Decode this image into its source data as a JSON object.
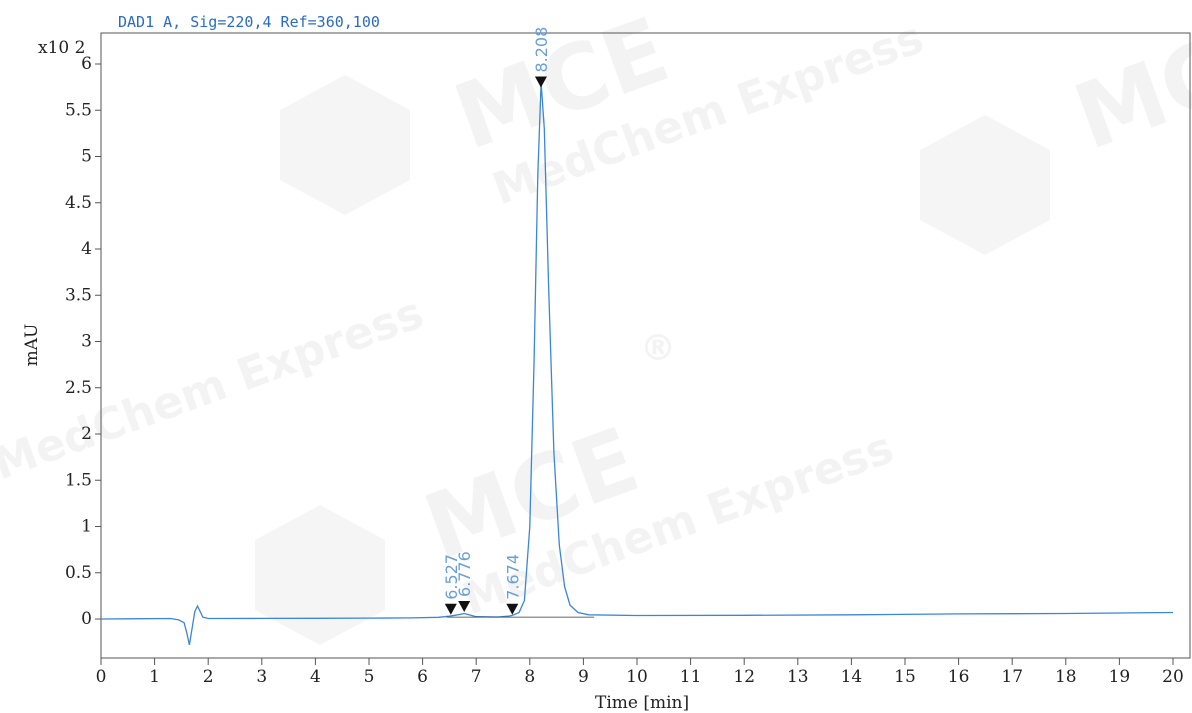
{
  "watermark": {
    "brand": "MCE",
    "name": "MedChem Express",
    "reg": "®"
  },
  "chart_data": {
    "type": "line",
    "title": "DAD1 A, Sig=220,4 Ref=360,100",
    "xlabel": "Time [min]",
    "ylabel": "mAU",
    "y_multiplier": "x10 2",
    "xlim": [
      0,
      20
    ],
    "ylim": [
      -0.45,
      6.3
    ],
    "x_ticks": [
      "0",
      "1",
      "2",
      "3",
      "4",
      "5",
      "6",
      "7",
      "8",
      "9",
      "10",
      "11",
      "12",
      "13",
      "14",
      "15",
      "16",
      "17",
      "18",
      "19",
      "20"
    ],
    "y_ticks": [
      {
        "v": 0,
        "label": "0"
      },
      {
        "v": 0.5,
        "label": "0.5"
      },
      {
        "v": 1,
        "label": "1"
      },
      {
        "v": 1.5,
        "label": "1.5"
      },
      {
        "v": 2,
        "label": "2"
      },
      {
        "v": 2.5,
        "label": "2.5"
      },
      {
        "v": 3,
        "label": "3"
      },
      {
        "v": 3.5,
        "label": "3.5"
      },
      {
        "v": 4,
        "label": "4"
      },
      {
        "v": 4.5,
        "label": "4.5"
      },
      {
        "v": 5,
        "label": "5"
      },
      {
        "v": 5.5,
        "label": "5.5"
      },
      {
        "v": 6,
        "label": "6"
      }
    ],
    "series": [
      {
        "color": "#3b86d8",
        "points": [
          [
            0,
            0
          ],
          [
            1.3,
            0.005
          ],
          [
            1.45,
            -0.01
          ],
          [
            1.55,
            -0.04
          ],
          [
            1.6,
            -0.15
          ],
          [
            1.65,
            -0.28
          ],
          [
            1.7,
            -0.1
          ],
          [
            1.75,
            0.08
          ],
          [
            1.8,
            0.14
          ],
          [
            1.85,
            0.08
          ],
          [
            1.9,
            0.02
          ],
          [
            2.0,
            0.005
          ],
          [
            3,
            0.006
          ],
          [
            4,
            0.008
          ],
          [
            5,
            0.01
          ],
          [
            5.8,
            0.012
          ],
          [
            6.3,
            0.018
          ],
          [
            6.5,
            0.03
          ],
          [
            6.6,
            0.04
          ],
          [
            6.7,
            0.05
          ],
          [
            6.78,
            0.06
          ],
          [
            6.9,
            0.04
          ],
          [
            7.0,
            0.025
          ],
          [
            7.4,
            0.022
          ],
          [
            7.6,
            0.03
          ],
          [
            7.68,
            0.04
          ],
          [
            7.8,
            0.07
          ],
          [
            7.9,
            0.2
          ],
          [
            8.0,
            1.0
          ],
          [
            8.08,
            2.8
          ],
          [
            8.15,
            4.8
          ],
          [
            8.21,
            5.8
          ],
          [
            8.27,
            5.3
          ],
          [
            8.35,
            3.6
          ],
          [
            8.45,
            1.8
          ],
          [
            8.55,
            0.8
          ],
          [
            8.65,
            0.35
          ],
          [
            8.75,
            0.15
          ],
          [
            8.9,
            0.07
          ],
          [
            9.1,
            0.045
          ],
          [
            10,
            0.038
          ],
          [
            12,
            0.04
          ],
          [
            14,
            0.045
          ],
          [
            16,
            0.055
          ],
          [
            18,
            0.06
          ],
          [
            19,
            0.065
          ],
          [
            20,
            0.07
          ]
        ]
      }
    ],
    "peaks": [
      {
        "rt": 6.527,
        "label": "6.527",
        "y": 0.1
      },
      {
        "rt": 6.776,
        "label": "6.776",
        "y": 0.13
      },
      {
        "rt": 7.674,
        "label": "7.674",
        "y": 0.1
      },
      {
        "rt": 8.208,
        "label": "8.208",
        "y": 5.8
      }
    ]
  }
}
